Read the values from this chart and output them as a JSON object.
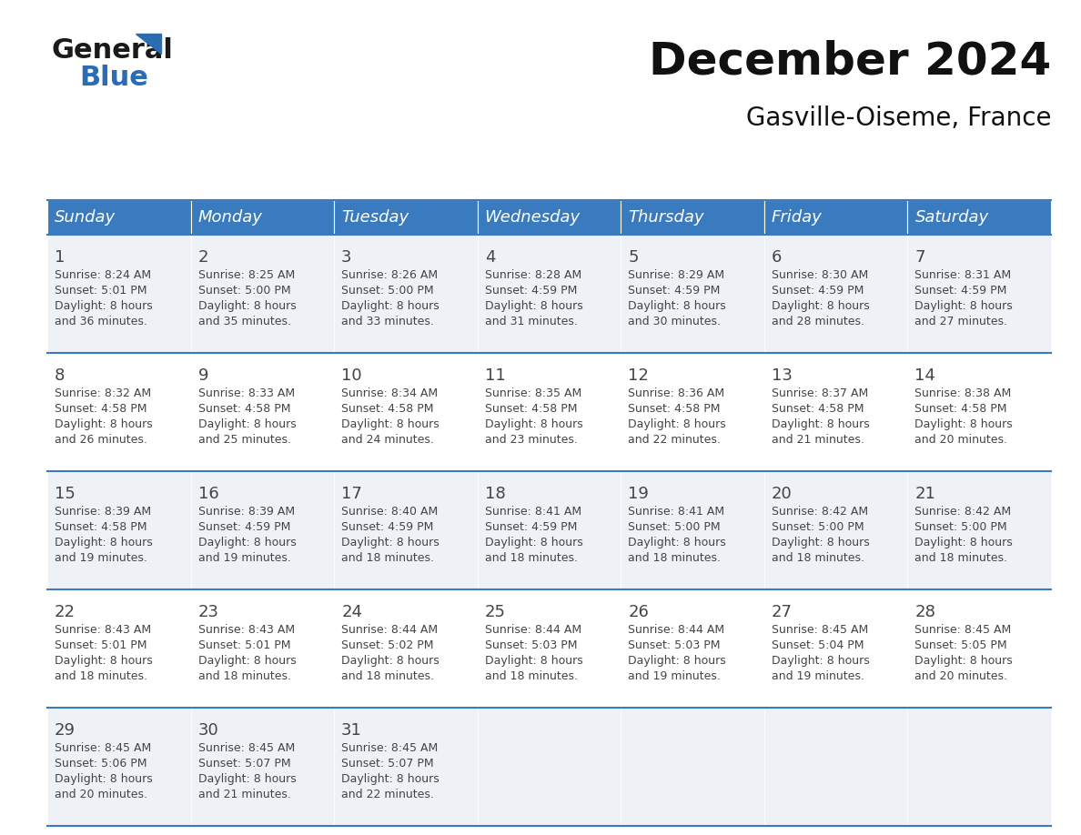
{
  "title": "December 2024",
  "subtitle": "Gasville-Oiseme, France",
  "header_bg_color": "#3a7bbf",
  "header_text_color": "#ffffff",
  "row_bg_even": "#eef2f7",
  "row_bg_odd": "#ffffff",
  "border_color": "#3a7bbf",
  "text_color": "#444444",
  "days_of_week": [
    "Sunday",
    "Monday",
    "Tuesday",
    "Wednesday",
    "Thursday",
    "Friday",
    "Saturday"
  ],
  "weeks": [
    [
      {
        "day": 1,
        "sunrise": "8:24 AM",
        "sunset": "5:01 PM",
        "daylight": "8 hours and 36 minutes"
      },
      {
        "day": 2,
        "sunrise": "8:25 AM",
        "sunset": "5:00 PM",
        "daylight": "8 hours and 35 minutes"
      },
      {
        "day": 3,
        "sunrise": "8:26 AM",
        "sunset": "5:00 PM",
        "daylight": "8 hours and 33 minutes"
      },
      {
        "day": 4,
        "sunrise": "8:28 AM",
        "sunset": "4:59 PM",
        "daylight": "8 hours and 31 minutes"
      },
      {
        "day": 5,
        "sunrise": "8:29 AM",
        "sunset": "4:59 PM",
        "daylight": "8 hours and 30 minutes"
      },
      {
        "day": 6,
        "sunrise": "8:30 AM",
        "sunset": "4:59 PM",
        "daylight": "8 hours and 28 minutes"
      },
      {
        "day": 7,
        "sunrise": "8:31 AM",
        "sunset": "4:59 PM",
        "daylight": "8 hours and 27 minutes"
      }
    ],
    [
      {
        "day": 8,
        "sunrise": "8:32 AM",
        "sunset": "4:58 PM",
        "daylight": "8 hours and 26 minutes"
      },
      {
        "day": 9,
        "sunrise": "8:33 AM",
        "sunset": "4:58 PM",
        "daylight": "8 hours and 25 minutes"
      },
      {
        "day": 10,
        "sunrise": "8:34 AM",
        "sunset": "4:58 PM",
        "daylight": "8 hours and 24 minutes"
      },
      {
        "day": 11,
        "sunrise": "8:35 AM",
        "sunset": "4:58 PM",
        "daylight": "8 hours and 23 minutes"
      },
      {
        "day": 12,
        "sunrise": "8:36 AM",
        "sunset": "4:58 PM",
        "daylight": "8 hours and 22 minutes"
      },
      {
        "day": 13,
        "sunrise": "8:37 AM",
        "sunset": "4:58 PM",
        "daylight": "8 hours and 21 minutes"
      },
      {
        "day": 14,
        "sunrise": "8:38 AM",
        "sunset": "4:58 PM",
        "daylight": "8 hours and 20 minutes"
      }
    ],
    [
      {
        "day": 15,
        "sunrise": "8:39 AM",
        "sunset": "4:58 PM",
        "daylight": "8 hours and 19 minutes"
      },
      {
        "day": 16,
        "sunrise": "8:39 AM",
        "sunset": "4:59 PM",
        "daylight": "8 hours and 19 minutes"
      },
      {
        "day": 17,
        "sunrise": "8:40 AM",
        "sunset": "4:59 PM",
        "daylight": "8 hours and 18 minutes"
      },
      {
        "day": 18,
        "sunrise": "8:41 AM",
        "sunset": "4:59 PM",
        "daylight": "8 hours and 18 minutes"
      },
      {
        "day": 19,
        "sunrise": "8:41 AM",
        "sunset": "5:00 PM",
        "daylight": "8 hours and 18 minutes"
      },
      {
        "day": 20,
        "sunrise": "8:42 AM",
        "sunset": "5:00 PM",
        "daylight": "8 hours and 18 minutes"
      },
      {
        "day": 21,
        "sunrise": "8:42 AM",
        "sunset": "5:00 PM",
        "daylight": "8 hours and 18 minutes"
      }
    ],
    [
      {
        "day": 22,
        "sunrise": "8:43 AM",
        "sunset": "5:01 PM",
        "daylight": "8 hours and 18 minutes"
      },
      {
        "day": 23,
        "sunrise": "8:43 AM",
        "sunset": "5:01 PM",
        "daylight": "8 hours and 18 minutes"
      },
      {
        "day": 24,
        "sunrise": "8:44 AM",
        "sunset": "5:02 PM",
        "daylight": "8 hours and 18 minutes"
      },
      {
        "day": 25,
        "sunrise": "8:44 AM",
        "sunset": "5:03 PM",
        "daylight": "8 hours and 18 minutes"
      },
      {
        "day": 26,
        "sunrise": "8:44 AM",
        "sunset": "5:03 PM",
        "daylight": "8 hours and 19 minutes"
      },
      {
        "day": 27,
        "sunrise": "8:45 AM",
        "sunset": "5:04 PM",
        "daylight": "8 hours and 19 minutes"
      },
      {
        "day": 28,
        "sunrise": "8:45 AM",
        "sunset": "5:05 PM",
        "daylight": "8 hours and 20 minutes"
      }
    ],
    [
      {
        "day": 29,
        "sunrise": "8:45 AM",
        "sunset": "5:06 PM",
        "daylight": "8 hours and 20 minutes"
      },
      {
        "day": 30,
        "sunrise": "8:45 AM",
        "sunset": "5:07 PM",
        "daylight": "8 hours and 21 minutes"
      },
      {
        "day": 31,
        "sunrise": "8:45 AM",
        "sunset": "5:07 PM",
        "daylight": "8 hours and 22 minutes"
      },
      null,
      null,
      null,
      null
    ]
  ],
  "logo_text1": "General",
  "logo_text2": "Blue",
  "logo_color1": "#1a1a1a",
  "logo_color2": "#2a6db5",
  "logo_triangle_color": "#2a6db5",
  "title_fontsize": 36,
  "subtitle_fontsize": 20,
  "header_fontsize": 13,
  "day_num_fontsize": 13,
  "cell_text_fontsize": 9
}
